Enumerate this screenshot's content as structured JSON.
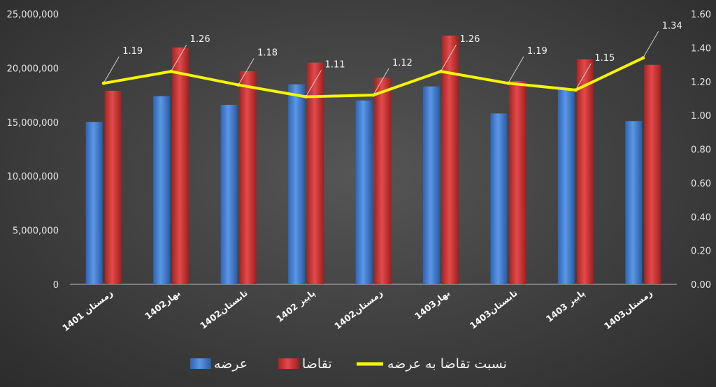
{
  "chart_data": {
    "type": "bar",
    "categories": [
      "زمستان 1401",
      "بهار1402",
      "تابستان1402",
      "پاییز 1402",
      "زمستان1402",
      "بهار1403",
      "تابستان1403",
      "پاییز 1403",
      "زمستان1403"
    ],
    "series": [
      {
        "name": "عرضه",
        "type": "bar",
        "axis": "left",
        "color": "#4a86d4",
        "values": [
          15000000,
          17400000,
          16600000,
          18500000,
          17000000,
          18300000,
          15800000,
          18100000,
          15100000
        ]
      },
      {
        "name": "تقاضا",
        "type": "bar",
        "axis": "left",
        "color": "#d43a3a",
        "values": [
          17900000,
          21900000,
          19700000,
          20500000,
          19100000,
          23000000,
          18800000,
          20800000,
          20300000
        ]
      },
      {
        "name": "نسبت تقاضا به عرضه",
        "type": "line",
        "axis": "right",
        "color": "#f5f500",
        "values": [
          1.19,
          1.26,
          1.18,
          1.11,
          1.12,
          1.26,
          1.19,
          1.15,
          1.34
        ],
        "labels": [
          "1.19",
          "1.26",
          "1.18",
          "1.11",
          "1.12",
          "1.26",
          "1.19",
          "1.15",
          "1.34"
        ]
      }
    ],
    "y_left": {
      "min": 0,
      "max": 25000000,
      "ticks": [
        "0",
        "5,000,000",
        "10,000,000",
        "15,000,000",
        "20,000,000",
        "25,000,000"
      ]
    },
    "y_right": {
      "min": 0,
      "max": 1.6,
      "ticks": [
        "0.00",
        "0.20",
        "0.40",
        "0.60",
        "0.80",
        "1.00",
        "1.20",
        "1.40",
        "1.60"
      ]
    },
    "grid": false,
    "legend_position": "bottom"
  }
}
